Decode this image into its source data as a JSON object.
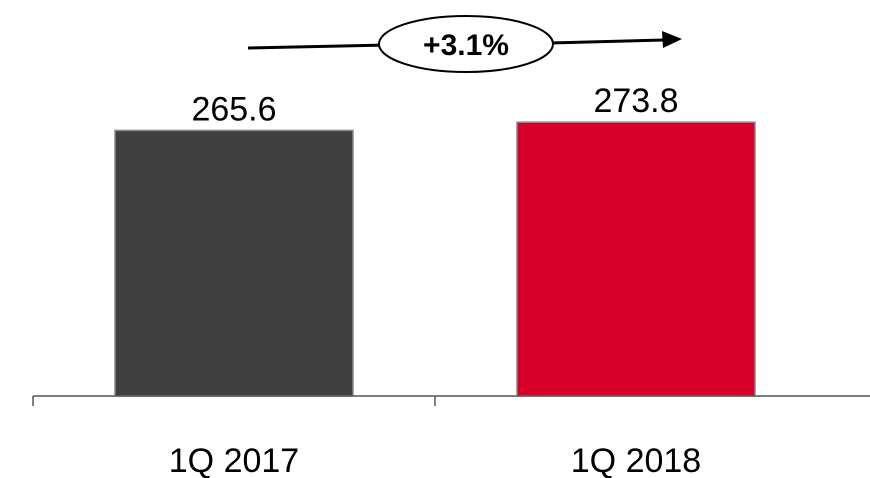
{
  "chart_data": {
    "type": "bar",
    "categories": [
      "1Q 2017",
      "1Q 2018"
    ],
    "values": [
      265.6,
      273.8
    ],
    "value_labels": [
      "265.6",
      "273.8"
    ],
    "colors": [
      "#404040",
      "#d6002a"
    ],
    "ylim": [
      0,
      290
    ],
    "grid": false,
    "title": "",
    "xlabel": "",
    "ylabel": "",
    "annotation": {
      "text": "+3.1%",
      "type": "growth-arrow"
    }
  }
}
